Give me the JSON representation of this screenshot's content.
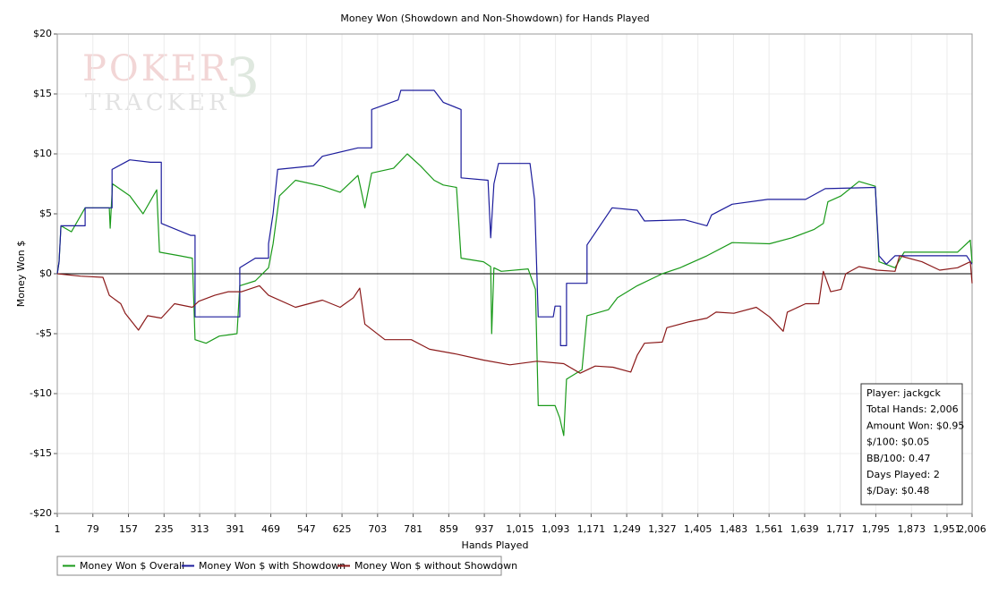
{
  "chart_data": {
    "type": "line",
    "title": "Money Won (Showdown and Non-Showdown) for Hands Played",
    "x_label": "Hands Played",
    "y_label": "Money Won $",
    "watermark": [
      "POKER",
      "3",
      "TRACKER"
    ],
    "xlim": [
      1,
      2006
    ],
    "ylim": [
      -20,
      20
    ],
    "grid": true,
    "xticks": [
      1,
      79,
      157,
      235,
      313,
      391,
      469,
      547,
      625,
      703,
      781,
      859,
      937,
      {
        "value": 1015,
        "label": "1,015"
      },
      {
        "value": 1093,
        "label": "1,093"
      },
      {
        "value": 1171,
        "label": "1,171"
      },
      {
        "value": 1249,
        "label": "1,249"
      },
      {
        "value": 1327,
        "label": "1,327"
      },
      {
        "value": 1405,
        "label": "1,405"
      },
      {
        "value": 1483,
        "label": "1,483"
      },
      {
        "value": 1561,
        "label": "1,561"
      },
      {
        "value": 1639,
        "label": "1,639"
      },
      {
        "value": 1717,
        "label": "1,717"
      },
      {
        "value": 1795,
        "label": "1,795"
      },
      {
        "value": 1873,
        "label": "1,873"
      },
      {
        "value": 1951,
        "label": "1,951"
      },
      {
        "value": 2006,
        "label": "2,006"
      }
    ],
    "yticks": [
      {
        "value": -20,
        "label": "-$20"
      },
      {
        "value": -15,
        "label": "-$15"
      },
      {
        "value": -10,
        "label": "-$10"
      },
      {
        "value": -5,
        "label": "-$5"
      },
      {
        "value": 0,
        "label": "$0"
      },
      {
        "value": 5,
        "label": "$5"
      },
      {
        "value": 10,
        "label": "$10"
      },
      {
        "value": 15,
        "label": "$15"
      },
      {
        "value": 20,
        "label": "$20"
      }
    ],
    "legend": "bottom-left",
    "series": [
      {
        "name": "Money Won $ Overall",
        "color": "#1a9a1a",
        "x": [
          1,
          5,
          9,
          32,
          62,
          115,
          117,
          122,
          160,
          189,
          219,
          225,
          269,
          297,
          303,
          327,
          356,
          395,
          401,
          435,
          464,
          474,
          488,
          523,
          582,
          621,
          660,
          675,
          690,
          738,
          768,
          797,
          827,
          847,
          876,
          886,
          935,
          951,
          953,
          958,
          974,
          1033,
          1049,
          1055,
          1092,
          1102,
          1111,
          1117,
          1151,
          1162,
          1209,
          1229,
          1272,
          1327,
          1366,
          1425,
          1480,
          1562,
          1611,
          1660,
          1680,
          1690,
          1719,
          1758,
          1794,
          1802,
          1837,
          1857,
          1915,
          1974,
          2002,
          2006
        ],
        "values": [
          0,
          1,
          4,
          3.5,
          5.5,
          5.5,
          3.8,
          7.5,
          6.5,
          5,
          7,
          1.8,
          1.5,
          1.3,
          -5.5,
          -5.8,
          -5.2,
          -5,
          -1,
          -0.6,
          0.5,
          2.5,
          6.5,
          7.8,
          7.3,
          6.8,
          8.2,
          5.5,
          8.4,
          8.8,
          10,
          9,
          7.8,
          7.4,
          7.2,
          1.3,
          1,
          0.6,
          -5,
          0.5,
          0.2,
          0.4,
          -1.3,
          -11,
          -11,
          -12,
          -13.5,
          -8.8,
          -8,
          -3.5,
          -3,
          -2,
          -1,
          0,
          0.5,
          1.5,
          2.6,
          2.5,
          3,
          3.7,
          4.2,
          6,
          6.5,
          7.7,
          7.3,
          1,
          0.5,
          1.8,
          1.8,
          1.8,
          2.8,
          0.9
        ]
      },
      {
        "name": "Money Won $ with Showdown",
        "color": "#1c1c9c",
        "x": [
          1,
          5,
          9,
          62,
          62,
          121,
          121,
          160,
          205,
          229,
          229,
          293,
          303,
          303,
          401,
          401,
          435,
          464,
          464,
          474,
          484,
          562,
          582,
          660,
          690,
          690,
          748,
          754,
          827,
          847,
          886,
          886,
          945,
          951,
          958,
          968,
          1037,
          1047,
          1055,
          1088,
          1092,
          1104,
          1104,
          1117,
          1117,
          1162,
          1162,
          1217,
          1272,
          1288,
          1376,
          1425,
          1435,
          1480,
          1558,
          1641,
          1684,
          1794,
          1802,
          1818,
          1837,
          1994,
          2006
        ],
        "values": [
          0,
          1,
          4,
          4,
          5.5,
          5.5,
          8.7,
          9.5,
          9.3,
          9.3,
          4.2,
          3.2,
          3.2,
          -3.6,
          -3.6,
          0.5,
          1.3,
          1.3,
          2.5,
          5,
          8.7,
          9,
          9.8,
          10.5,
          10.5,
          13.7,
          14.5,
          15.3,
          15.3,
          14.3,
          13.7,
          8,
          7.8,
          3,
          7.5,
          9.2,
          9.2,
          6.2,
          -3.6,
          -3.6,
          -2.7,
          -2.7,
          -6,
          -6,
          -0.8,
          -0.8,
          2.4,
          5.5,
          5.3,
          4.4,
          4.5,
          4,
          4.9,
          5.8,
          6.2,
          6.2,
          7.1,
          7.2,
          1.5,
          0.8,
          1.5,
          1.5,
          0.8
        ]
      },
      {
        "name": "Money Won $ without Showdown",
        "color": "#8b1a1a",
        "x": [
          1,
          52,
          101,
          115,
          140,
          150,
          179,
          199,
          229,
          258,
          297,
          311,
          346,
          376,
          405,
          444,
          464,
          523,
          582,
          621,
          650,
          664,
          675,
          719,
          777,
          817,
          876,
          935,
          993,
          1052,
          1111,
          1147,
          1180,
          1219,
          1258,
          1272,
          1288,
          1327,
          1337,
          1386,
          1425,
          1445,
          1484,
          1533,
          1562,
          1592,
          1601,
          1641,
          1670,
          1680,
          1696,
          1719,
          1729,
          1758,
          1798,
          1837,
          1847,
          1896,
          1935,
          1974,
          2002,
          2006
        ],
        "values": [
          0,
          -0.2,
          -0.3,
          -1.8,
          -2.5,
          -3.3,
          -4.7,
          -3.5,
          -3.7,
          -2.5,
          -2.8,
          -2.3,
          -1.8,
          -1.5,
          -1.5,
          -1,
          -1.8,
          -2.8,
          -2.2,
          -2.8,
          -2,
          -1.2,
          -4.2,
          -5.5,
          -5.5,
          -6.3,
          -6.7,
          -7.2,
          -7.6,
          -7.3,
          -7.5,
          -8.3,
          -7.7,
          -7.8,
          -8.2,
          -6.8,
          -5.8,
          -5.7,
          -4.5,
          -4,
          -3.7,
          -3.2,
          -3.3,
          -2.8,
          -3.6,
          -4.8,
          -3.2,
          -2.5,
          -2.5,
          0.2,
          -1.5,
          -1.3,
          0,
          0.6,
          0.3,
          0.2,
          1.5,
          1,
          0.3,
          0.5,
          1,
          -0.8
        ]
      }
    ],
    "info_box": [
      "Player: jackgck",
      "Total Hands: 2,006",
      "Amount Won: $0.95",
      "$/100: $0.05",
      "BB/100: 0.47",
      "Days Played: 2",
      "$/Day: $0.48"
    ]
  }
}
